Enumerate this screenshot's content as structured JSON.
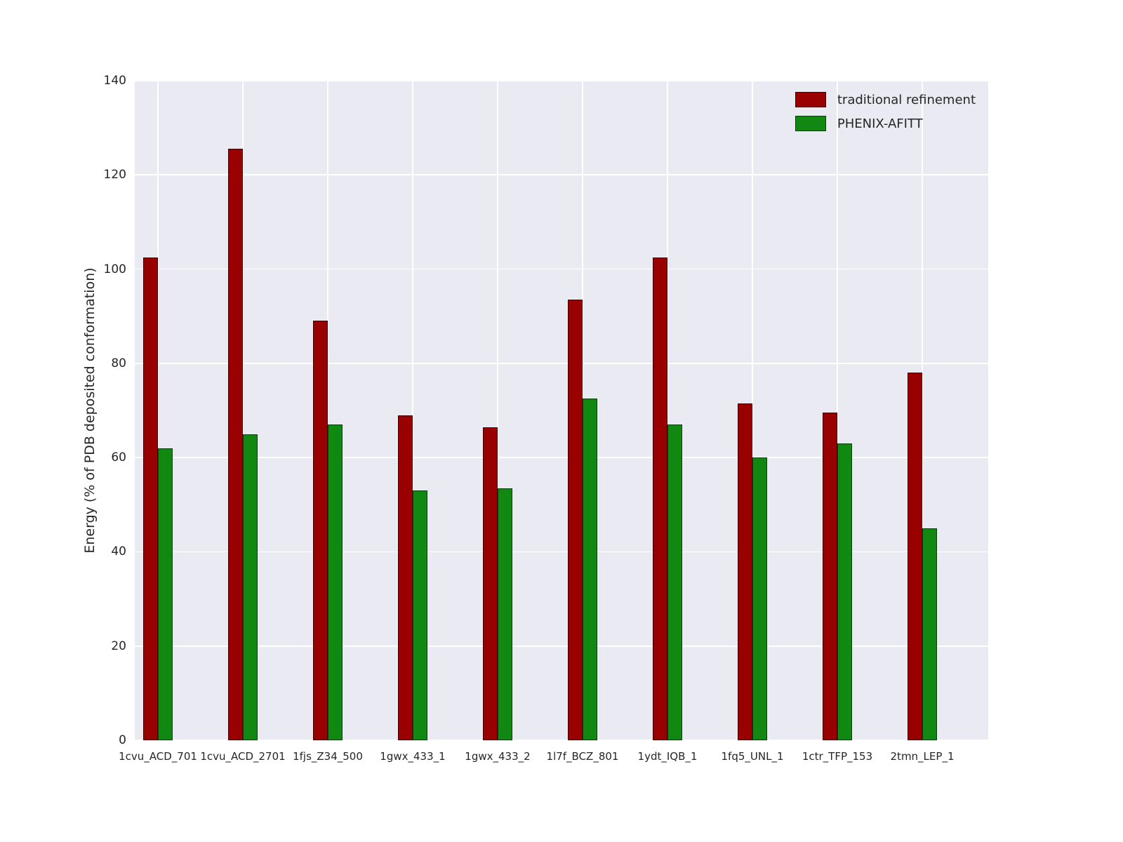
{
  "chart_data": {
    "type": "bar",
    "title": "",
    "xlabel": "",
    "ylabel": "Energy (% of PDB deposited conformation)",
    "ylim": [
      0,
      140
    ],
    "yticks": [
      0,
      20,
      40,
      60,
      80,
      100,
      120,
      140
    ],
    "grid": true,
    "plot_background": "#eaeaf2",
    "grid_color": "#ffffff",
    "legend_position": "upper right",
    "categories": [
      "1cvu_ACD_701",
      "1cvu_ACD_2701",
      "1fjs_Z34_500",
      "1gwx_433_1",
      "1gwx_433_2",
      "1l7f_BCZ_801",
      "1ydt_IQB_1",
      "1fq5_UNL_1",
      "1ctr_TFP_153",
      "2tmn_LEP_1"
    ],
    "series": [
      {
        "name": "traditional refinement",
        "color": "#990000",
        "values": [
          102.5,
          125.5,
          89,
          69,
          66.5,
          93.5,
          102.5,
          71.5,
          69.5,
          78
        ]
      },
      {
        "name": "PHENIX-AFITT",
        "color": "#118811",
        "values": [
          62,
          65,
          67,
          53,
          53.5,
          72.5,
          67,
          60,
          63,
          45
        ]
      }
    ]
  }
}
